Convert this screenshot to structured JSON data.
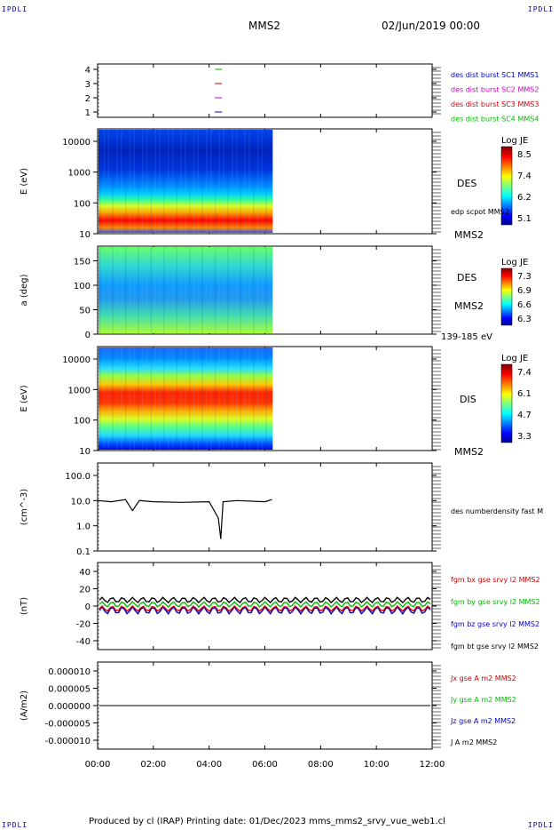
{
  "corners": {
    "top_left": "IPDLI",
    "top_right": "IPDLI",
    "bottom_left": "IPDLI",
    "bottom_right": "IPDLI"
  },
  "header": {
    "spacecraft": "MMS2",
    "date": "02/Jun/2019 00:00"
  },
  "footer": {
    "text": "Produced by cl (IRAP)   Printing date: 01/Dec/2023   mms_mms2_srvy_vue_web1.cl"
  },
  "colors": {
    "mms1": "#0000cc",
    "mms2": "#cc00cc",
    "mms3": "#cc0000",
    "mms4": "#00bb00",
    "black": "#000000"
  },
  "chart_data": [
    {
      "id": "p1",
      "type": "scatter",
      "yticks": [
        "1",
        "2",
        "3",
        "4"
      ],
      "legend": [
        {
          "label": "des dist burst SC1 MMS1",
          "color": "#0000cc"
        },
        {
          "label": "des dist burst SC2 MMS2",
          "color": "#cc00cc"
        },
        {
          "label": "des dist burst SC3 MMS3",
          "color": "#cc0000"
        },
        {
          "label": "des dist burst SC4 MMS4",
          "color": "#00bb00"
        }
      ],
      "marks": [
        {
          "y": 4,
          "x": "04:20",
          "color": "#00bb00"
        },
        {
          "y": 3,
          "x": "04:20",
          "color": "#cc0000"
        },
        {
          "y": 2,
          "x": "04:20",
          "color": "#cc00cc"
        },
        {
          "y": 1,
          "x": "04:20",
          "color": "#0000cc"
        }
      ]
    },
    {
      "id": "p2",
      "type": "heatmap",
      "ylabel": "E (eV)",
      "yticks": [
        "10000",
        "1000",
        "100",
        "10"
      ],
      "right_labels": [
        "DES",
        "edp scpot MMS2",
        "MMS2"
      ],
      "colorbar": {
        "title": "Log JE",
        "ticks": [
          "8.5",
          "7.4",
          "6.2",
          "5.1"
        ]
      },
      "data_end": "06:15"
    },
    {
      "id": "p3",
      "type": "heatmap",
      "ylabel": "a (deg)",
      "yticks": [
        "150",
        "100",
        "50",
        "0"
      ],
      "right_labels": [
        "DES",
        "MMS2",
        "139-185 eV"
      ],
      "colorbar": {
        "title": "Log JE",
        "ticks": [
          "7.3",
          "6.9",
          "6.6",
          "6.3"
        ]
      },
      "data_end": "06:15"
    },
    {
      "id": "p4",
      "type": "heatmap",
      "ylabel": "E (eV)",
      "yticks": [
        "10000",
        "1000",
        "100",
        "10"
      ],
      "right_labels": [
        "DIS",
        "MMS2"
      ],
      "colorbar": {
        "title": "Log JE",
        "ticks": [
          "7.4",
          "6.1",
          "4.7",
          "3.3"
        ]
      },
      "data_end": "06:15"
    },
    {
      "id": "p5",
      "type": "line",
      "ylabel": "(cm^-3)",
      "yticks": [
        "100.0",
        "10.0",
        "1.0",
        "0.1"
      ],
      "legend": [
        {
          "label": "des numberdensity fast M",
          "color": "#000000"
        }
      ],
      "series": [
        {
          "x": [
            "00:00",
            "00:30",
            "01:00",
            "01:15",
            "01:30",
            "02:00",
            "03:00",
            "04:00",
            "04:20",
            "04:25",
            "04:30",
            "05:00",
            "06:00",
            "06:15"
          ],
          "values": [
            10,
            9,
            11,
            4,
            10,
            9,
            8.5,
            9,
            2,
            0.3,
            9,
            10,
            9,
            11
          ]
        }
      ]
    },
    {
      "id": "p6",
      "type": "line",
      "ylabel": "(nT)",
      "yticks": [
        "40",
        "20",
        "0",
        "-20",
        "-40"
      ],
      "legend": [
        {
          "label": "fgm bx gse srvy l2 MMS2",
          "color": "#cc0000"
        },
        {
          "label": "fgm by gse srvy l2 MMS2",
          "color": "#00bb00"
        },
        {
          "label": "fgm bz gse srvy l2 MMS2",
          "color": "#0000cc"
        },
        {
          "label": "fgm bt gse srvy l2 MMS2",
          "color": "#000000"
        }
      ],
      "ylim": [
        -50,
        50
      ]
    },
    {
      "id": "p7",
      "type": "line",
      "ylabel": "(A/m2)",
      "yticks": [
        "0.000010",
        "0.000005",
        "0.000000",
        "-0.000005",
        "-0.000010"
      ],
      "legend": [
        {
          "label": "Jx gse A m2 MMS2",
          "color": "#cc0000"
        },
        {
          "label": "Jy gse A m2 MMS2",
          "color": "#00bb00"
        },
        {
          "label": "Jz gse A m2 MMS2",
          "color": "#0000cc"
        },
        {
          "label": "J A m2 MMS2",
          "color": "#000000"
        }
      ],
      "ylim": [
        -1e-05,
        1e-05
      ]
    }
  ],
  "xaxis": {
    "ticks": [
      "00:00",
      "02:00",
      "04:00",
      "06:00",
      "08:00",
      "10:00",
      "12:00"
    ],
    "range": [
      "00:00",
      "12:00"
    ]
  }
}
